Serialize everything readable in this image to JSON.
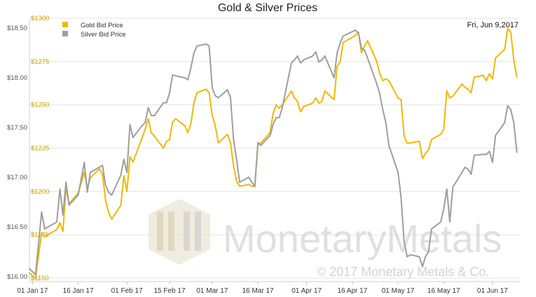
{
  "chart_data": {
    "type": "line",
    "title": "Gold & Silver Prices",
    "date_label": "Fri, Jun 9,2017",
    "legend_position": "top-left",
    "grid": true,
    "x_range": [
      "2016-12-31",
      "2017-06-10"
    ],
    "x_ticks": [
      {
        "date": "2017-01-01",
        "label": "01 Jan 17"
      },
      {
        "date": "2017-01-16",
        "label": "16 Jan 17"
      },
      {
        "date": "2017-02-01",
        "label": "01 Feb 17"
      },
      {
        "date": "2017-02-15",
        "label": "15 Feb 17"
      },
      {
        "date": "2017-03-01",
        "label": "01 Mar 17"
      },
      {
        "date": "2017-03-16",
        "label": "16 Mar 17"
      },
      {
        "date": "2017-04-01",
        "label": "01 Apr 17"
      },
      {
        "date": "2017-04-16",
        "label": "16 Apr 17"
      },
      {
        "date": "2017-05-01",
        "label": "01 May 17"
      },
      {
        "date": "2017-05-16",
        "label": "16 May 17"
      },
      {
        "date": "2017-06-01",
        "label": "01 Jun 17"
      }
    ],
    "y_left": {
      "range": [
        15.95,
        18.6
      ],
      "ticks": [
        16.0,
        16.5,
        17.0,
        17.5,
        18.0,
        18.5
      ],
      "tick_labels": [
        "$16.00",
        "$16.50",
        "$17.00",
        "$17.50",
        "$18.00",
        "$18.50"
      ]
    },
    "y_right": {
      "range": [
        1148,
        1300
      ],
      "ticks": [
        1150,
        1175,
        1200,
        1225,
        1250,
        1275,
        1300
      ],
      "tick_labels": [
        "$1150",
        "$1175",
        "$1200",
        "$1225",
        "$1250",
        "$1275",
        "$1300"
      ]
    },
    "series": [
      {
        "name": "Gold Bid Price",
        "axis": "right",
        "color": "#f0b800",
        "points": [
          [
            "2016-12-31",
            1153
          ],
          [
            "2017-01-02",
            1150
          ],
          [
            "2017-01-04",
            1176
          ],
          [
            "2017-01-05",
            1174
          ],
          [
            "2017-01-09",
            1178
          ],
          [
            "2017-01-10",
            1182
          ],
          [
            "2017-01-11",
            1177
          ],
          [
            "2017-01-12",
            1202
          ],
          [
            "2017-01-13",
            1193
          ],
          [
            "2017-01-16",
            1199
          ],
          [
            "2017-01-18",
            1211
          ],
          [
            "2017-01-19",
            1202
          ],
          [
            "2017-01-20",
            1208
          ],
          [
            "2017-01-23",
            1213
          ],
          [
            "2017-01-24",
            1210
          ],
          [
            "2017-01-25",
            1195
          ],
          [
            "2017-01-26",
            1188
          ],
          [
            "2017-01-27",
            1184
          ],
          [
            "2017-01-30",
            1192
          ],
          [
            "2017-01-31",
            1209
          ],
          [
            "2017-02-01",
            1200
          ],
          [
            "2017-02-02",
            1220
          ],
          [
            "2017-02-03",
            1217
          ],
          [
            "2017-02-06",
            1231
          ],
          [
            "2017-02-07",
            1236
          ],
          [
            "2017-02-08",
            1242
          ],
          [
            "2017-02-09",
            1234
          ],
          [
            "2017-02-10",
            1232
          ],
          [
            "2017-02-13",
            1225
          ],
          [
            "2017-02-14",
            1229
          ],
          [
            "2017-02-15",
            1230
          ],
          [
            "2017-02-16",
            1240
          ],
          [
            "2017-02-17",
            1242
          ],
          [
            "2017-02-20",
            1238
          ],
          [
            "2017-02-21",
            1234
          ],
          [
            "2017-02-22",
            1239
          ],
          [
            "2017-02-23",
            1251
          ],
          [
            "2017-02-24",
            1257
          ],
          [
            "2017-02-27",
            1259
          ],
          [
            "2017-02-28",
            1257
          ],
          [
            "2017-03-01",
            1244
          ],
          [
            "2017-03-02",
            1238
          ],
          [
            "2017-03-03",
            1228
          ],
          [
            "2017-03-06",
            1233
          ],
          [
            "2017-03-07",
            1228
          ],
          [
            "2017-03-08",
            1215
          ],
          [
            "2017-03-09",
            1206
          ],
          [
            "2017-03-10",
            1203
          ],
          [
            "2017-03-13",
            1204
          ],
          [
            "2017-03-14",
            1203
          ],
          [
            "2017-03-15",
            1203
          ],
          [
            "2017-03-16",
            1227
          ],
          [
            "2017-03-17",
            1228
          ],
          [
            "2017-03-20",
            1234
          ],
          [
            "2017-03-21",
            1245
          ],
          [
            "2017-03-22",
            1250
          ],
          [
            "2017-03-23",
            1248
          ],
          [
            "2017-03-24",
            1250
          ],
          [
            "2017-03-27",
            1258
          ],
          [
            "2017-03-28",
            1254
          ],
          [
            "2017-03-29",
            1252
          ],
          [
            "2017-03-30",
            1246
          ],
          [
            "2017-03-31",
            1249
          ],
          [
            "2017-04-03",
            1251
          ],
          [
            "2017-04-04",
            1254
          ],
          [
            "2017-04-05",
            1251
          ],
          [
            "2017-04-06",
            1252
          ],
          [
            "2017-04-07",
            1258
          ],
          [
            "2017-04-10",
            1253
          ],
          [
            "2017-04-11",
            1272
          ],
          [
            "2017-04-12",
            1275
          ],
          [
            "2017-04-13",
            1286
          ],
          [
            "2017-04-17",
            1290
          ],
          [
            "2017-04-18",
            1292
          ],
          [
            "2017-04-19",
            1280
          ],
          [
            "2017-04-20",
            1284
          ],
          [
            "2017-04-21",
            1287
          ],
          [
            "2017-04-24",
            1275
          ],
          [
            "2017-04-25",
            1268
          ],
          [
            "2017-04-26",
            1264
          ],
          [
            "2017-04-27",
            1265
          ],
          [
            "2017-04-28",
            1264
          ],
          [
            "2017-05-01",
            1254
          ],
          [
            "2017-05-02",
            1253
          ],
          [
            "2017-05-03",
            1232
          ],
          [
            "2017-05-04",
            1228
          ],
          [
            "2017-05-05",
            1228
          ],
          [
            "2017-05-08",
            1229
          ],
          [
            "2017-05-09",
            1219
          ],
          [
            "2017-05-10",
            1222
          ],
          [
            "2017-05-11",
            1224
          ],
          [
            "2017-05-12",
            1230
          ],
          [
            "2017-05-15",
            1233
          ],
          [
            "2017-05-16",
            1236
          ],
          [
            "2017-05-17",
            1258
          ],
          [
            "2017-05-18",
            1254
          ],
          [
            "2017-05-19",
            1255
          ],
          [
            "2017-05-22",
            1262
          ],
          [
            "2017-05-23",
            1260
          ],
          [
            "2017-05-24",
            1259
          ],
          [
            "2017-05-25",
            1257
          ],
          [
            "2017-05-26",
            1266
          ],
          [
            "2017-05-29",
            1267
          ],
          [
            "2017-05-30",
            1264
          ],
          [
            "2017-05-31",
            1268
          ],
          [
            "2017-06-01",
            1265
          ],
          [
            "2017-06-02",
            1277
          ],
          [
            "2017-06-05",
            1282
          ],
          [
            "2017-06-06",
            1294
          ],
          [
            "2017-06-07",
            1292
          ],
          [
            "2017-06-08",
            1276
          ],
          [
            "2017-06-09",
            1266
          ]
        ]
      },
      {
        "name": "Silver Bid Price",
        "axis": "left",
        "color": "#9e9e9e",
        "points": [
          [
            "2016-12-31",
            16.08
          ],
          [
            "2017-01-02",
            16.02
          ],
          [
            "2017-01-04",
            16.65
          ],
          [
            "2017-01-05",
            16.48
          ],
          [
            "2017-01-09",
            16.55
          ],
          [
            "2017-01-10",
            16.88
          ],
          [
            "2017-01-11",
            16.62
          ],
          [
            "2017-01-12",
            16.95
          ],
          [
            "2017-01-13",
            16.72
          ],
          [
            "2017-01-16",
            16.82
          ],
          [
            "2017-01-18",
            17.15
          ],
          [
            "2017-01-19",
            16.85
          ],
          [
            "2017-01-20",
            17.05
          ],
          [
            "2017-01-23",
            17.1
          ],
          [
            "2017-01-24",
            17.12
          ],
          [
            "2017-01-25",
            16.92
          ],
          [
            "2017-01-26",
            16.85
          ],
          [
            "2017-01-27",
            16.82
          ],
          [
            "2017-01-30",
            17.02
          ],
          [
            "2017-01-31",
            17.18
          ],
          [
            "2017-02-01",
            17.05
          ],
          [
            "2017-02-02",
            17.53
          ],
          [
            "2017-02-03",
            17.4
          ],
          [
            "2017-02-06",
            17.52
          ],
          [
            "2017-02-07",
            17.55
          ],
          [
            "2017-02-08",
            17.7
          ],
          [
            "2017-02-09",
            17.62
          ],
          [
            "2017-02-10",
            17.62
          ],
          [
            "2017-02-13",
            17.75
          ],
          [
            "2017-02-14",
            17.75
          ],
          [
            "2017-02-15",
            17.85
          ],
          [
            "2017-02-16",
            18.03
          ],
          [
            "2017-02-17",
            18.02
          ],
          [
            "2017-02-20",
            18.0
          ],
          [
            "2017-02-21",
            17.98
          ],
          [
            "2017-02-22",
            18.1
          ],
          [
            "2017-02-23",
            18.25
          ],
          [
            "2017-02-24",
            18.32
          ],
          [
            "2017-02-27",
            18.34
          ],
          [
            "2017-02-28",
            18.32
          ],
          [
            "2017-03-01",
            17.9
          ],
          [
            "2017-03-02",
            17.82
          ],
          [
            "2017-03-03",
            17.8
          ],
          [
            "2017-03-06",
            17.88
          ],
          [
            "2017-03-07",
            17.8
          ],
          [
            "2017-03-08",
            17.38
          ],
          [
            "2017-03-09",
            17.18
          ],
          [
            "2017-03-10",
            16.95
          ],
          [
            "2017-03-13",
            17.0
          ],
          [
            "2017-03-14",
            16.95
          ],
          [
            "2017-03-15",
            16.91
          ],
          [
            "2017-03-16",
            17.35
          ],
          [
            "2017-03-17",
            17.32
          ],
          [
            "2017-03-20",
            17.42
          ],
          [
            "2017-03-21",
            17.53
          ],
          [
            "2017-03-22",
            17.6
          ],
          [
            "2017-03-23",
            17.6
          ],
          [
            "2017-03-24",
            17.7
          ],
          [
            "2017-03-27",
            18.15
          ],
          [
            "2017-03-28",
            18.18
          ],
          [
            "2017-03-29",
            18.22
          ],
          [
            "2017-03-30",
            18.15
          ],
          [
            "2017-03-31",
            18.18
          ],
          [
            "2017-04-03",
            18.22
          ],
          [
            "2017-04-04",
            18.26
          ],
          [
            "2017-04-05",
            18.16
          ],
          [
            "2017-04-06",
            18.18
          ],
          [
            "2017-04-07",
            18.22
          ],
          [
            "2017-04-10",
            18.0
          ],
          [
            "2017-04-11",
            18.25
          ],
          [
            "2017-04-12",
            18.35
          ],
          [
            "2017-04-13",
            18.42
          ],
          [
            "2017-04-17",
            18.48
          ],
          [
            "2017-04-18",
            18.45
          ],
          [
            "2017-04-19",
            18.3
          ],
          [
            "2017-04-20",
            18.28
          ],
          [
            "2017-04-21",
            18.2
          ],
          [
            "2017-04-24",
            17.94
          ],
          [
            "2017-04-25",
            17.84
          ],
          [
            "2017-04-26",
            17.68
          ],
          [
            "2017-04-27",
            17.55
          ],
          [
            "2017-04-28",
            17.32
          ],
          [
            "2017-05-01",
            17.05
          ],
          [
            "2017-05-02",
            16.8
          ],
          [
            "2017-05-03",
            16.35
          ],
          [
            "2017-05-04",
            16.2
          ],
          [
            "2017-05-05",
            16.22
          ],
          [
            "2017-05-08",
            16.2
          ],
          [
            "2017-05-09",
            16.1
          ],
          [
            "2017-05-10",
            16.2
          ],
          [
            "2017-05-11",
            16.25
          ],
          [
            "2017-05-12",
            16.48
          ],
          [
            "2017-05-15",
            16.55
          ],
          [
            "2017-05-16",
            16.68
          ],
          [
            "2017-05-17",
            16.88
          ],
          [
            "2017-05-18",
            16.55
          ],
          [
            "2017-05-19",
            16.9
          ],
          [
            "2017-05-22",
            17.05
          ],
          [
            "2017-05-23",
            17.1
          ],
          [
            "2017-05-24",
            17.08
          ],
          [
            "2017-05-25",
            17.03
          ],
          [
            "2017-05-26",
            17.22
          ],
          [
            "2017-05-29",
            17.23
          ],
          [
            "2017-05-30",
            17.23
          ],
          [
            "2017-05-31",
            17.26
          ],
          [
            "2017-06-01",
            17.15
          ],
          [
            "2017-06-02",
            17.42
          ],
          [
            "2017-06-05",
            17.55
          ],
          [
            "2017-06-06",
            17.72
          ],
          [
            "2017-06-07",
            17.68
          ],
          [
            "2017-06-08",
            17.55
          ],
          [
            "2017-06-09",
            17.25
          ]
        ]
      }
    ]
  },
  "watermark": {
    "brand": "MonetaryMetals",
    "copyright": "© 2017 Monetary Metals & Co."
  }
}
